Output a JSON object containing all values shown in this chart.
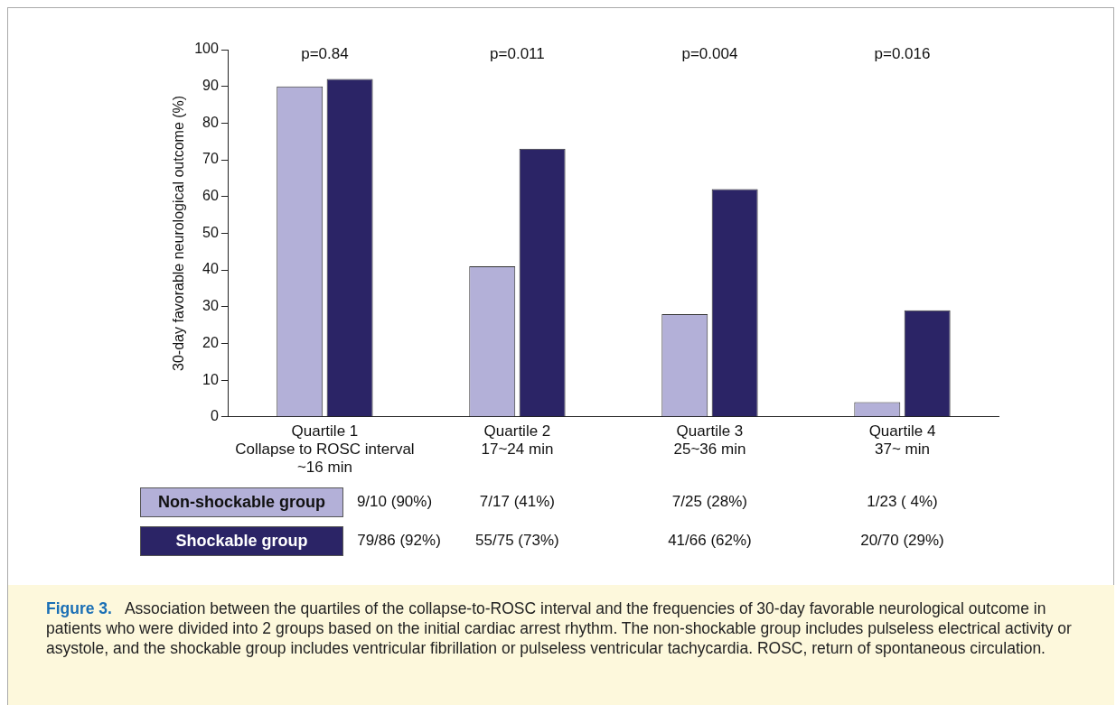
{
  "chart_data": {
    "type": "bar",
    "categories": [
      "Quartile 1\nCollapse to ROSC interval\n~16 min",
      "Quartile 2\n17~24 min",
      "Quartile 3\n25~36 min",
      "Quartile 4\n37~ min"
    ],
    "series": [
      {
        "name": "Non-shockable group",
        "color": "#b3b0d8",
        "values": [
          90,
          41,
          28,
          4
        ],
        "value_labels": [
          "9/10 (90%)",
          "7/17 (41%)",
          "7/25 (28%)",
          "1/23 ( 4%)"
        ]
      },
      {
        "name": "Shockable group",
        "color": "#2b2466",
        "values": [
          92,
          73,
          62,
          29
        ],
        "value_labels": [
          "79/86 (92%)",
          "55/75 (73%)",
          "41/66 (62%)",
          "20/70 (29%)"
        ]
      }
    ],
    "ylabel": "30-day favorable neurological outcome (%)",
    "ylim": [
      0,
      100
    ],
    "yticks": [
      0,
      10,
      20,
      30,
      40,
      50,
      60,
      70,
      80,
      90,
      100
    ],
    "grid": false,
    "legend": false,
    "annotations": [
      "p=0.84",
      "p=0.011",
      "p=0.004",
      "p=0.016",
      "Figure 3.",
      "Association between the quartiles of the collapse-to-ROSC interval and the frequencies of 30-day favorable neurological outcome in patients who were divided into 2 groups based on the initial cardiac arrest rhythm. The non-shockable group includes pulseless electrical activity or asystole, and the shockable group includes ventricular fibrillation or pulseless ventricular tachycardia. ROSC, return of spontaneous circulation."
    ]
  }
}
